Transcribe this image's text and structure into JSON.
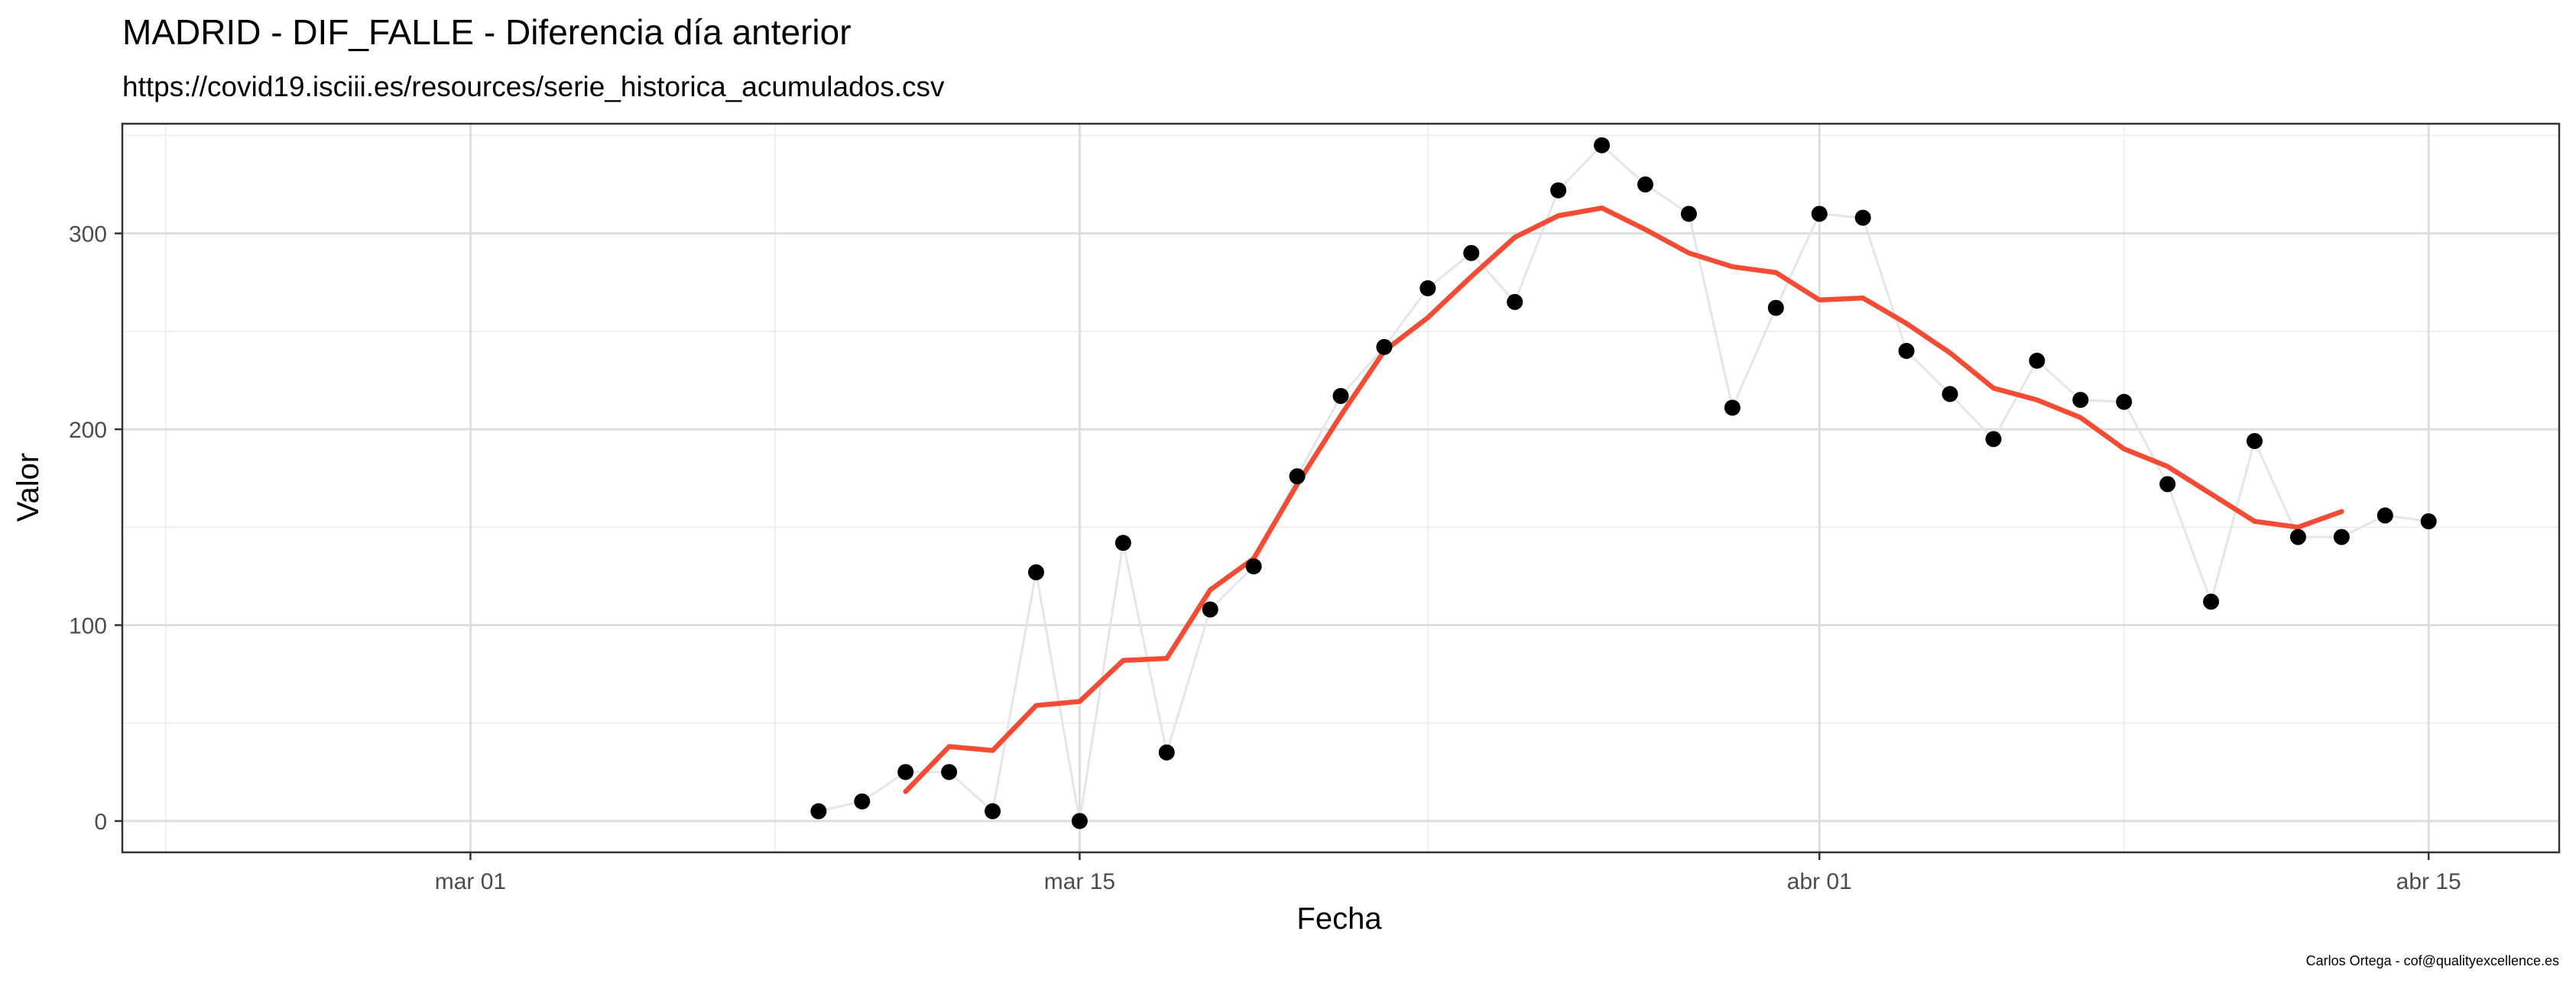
{
  "title": "MADRID - DIF_FALLE - Diferencia día anterior",
  "subtitle": "https://covid19.isciii.es/resources/serie_historica_acumulados.csv",
  "caption": "Carlos Ortega - cof@qualityexcellence.es",
  "colors": {
    "points": "#000000",
    "raw_line": "#e6e6e6",
    "smooth_line": "#f44b35",
    "grid_major": "#dedede",
    "grid_minor": "#efefef",
    "panel_border": "#333333"
  },
  "chart_data": {
    "type": "line",
    "title": "MADRID - DIF_FALLE - Diferencia día anterior",
    "subtitle": "https://covid19.isciii.es/resources/serie_historica_acumulados.csv",
    "xlabel": "Fecha",
    "ylabel": "Valor",
    "xlim": [
      "2020-02-22",
      "2020-04-18"
    ],
    "ylim": [
      -16,
      356
    ],
    "x_ticks": [
      {
        "date": "2020-03-01",
        "label": "mar 01"
      },
      {
        "date": "2020-03-15",
        "label": "mar 15"
      },
      {
        "date": "2020-04-01",
        "label": "abr 01"
      },
      {
        "date": "2020-04-15",
        "label": "abr 15"
      }
    ],
    "y_ticks": [
      0,
      100,
      200,
      300
    ],
    "grid": true,
    "legend": "none",
    "series": [
      {
        "values": [
          {
            "x": "2020-03-09",
            "y": 5
          },
          {
            "x": "2020-03-10",
            "y": 10
          },
          {
            "x": "2020-03-11",
            "y": 25
          },
          {
            "x": "2020-03-12",
            "y": 25
          },
          {
            "x": "2020-03-13",
            "y": 5
          },
          {
            "x": "2020-03-14",
            "y": 127
          },
          {
            "x": "2020-03-15",
            "y": 0
          },
          {
            "x": "2020-03-16",
            "y": 142
          },
          {
            "x": "2020-03-17",
            "y": 35
          },
          {
            "x": "2020-03-18",
            "y": 108
          },
          {
            "x": "2020-03-19",
            "y": 130
          },
          {
            "x": "2020-03-20",
            "y": 176
          },
          {
            "x": "2020-03-21",
            "y": 217
          },
          {
            "x": "2020-03-22",
            "y": 242
          },
          {
            "x": "2020-03-23",
            "y": 272
          },
          {
            "x": "2020-03-24",
            "y": 290
          },
          {
            "x": "2020-03-25",
            "y": 265
          },
          {
            "x": "2020-03-26",
            "y": 322
          },
          {
            "x": "2020-03-27",
            "y": 345
          },
          {
            "x": "2020-03-28",
            "y": 325
          },
          {
            "x": "2020-03-29",
            "y": 310
          },
          {
            "x": "2020-03-30",
            "y": 211
          },
          {
            "x": "2020-03-31",
            "y": 262
          },
          {
            "x": "2020-04-01",
            "y": 310
          },
          {
            "x": "2020-04-02",
            "y": 308
          },
          {
            "x": "2020-04-03",
            "y": 240
          },
          {
            "x": "2020-04-04",
            "y": 218
          },
          {
            "x": "2020-04-05",
            "y": 195
          },
          {
            "x": "2020-04-06",
            "y": 235
          },
          {
            "x": "2020-04-07",
            "y": 215
          },
          {
            "x": "2020-04-08",
            "y": 214
          },
          {
            "x": "2020-04-09",
            "y": 172
          },
          {
            "x": "2020-04-10",
            "y": 112
          },
          {
            "x": "2020-04-11",
            "y": 194
          },
          {
            "x": "2020-04-12",
            "y": 145
          },
          {
            "x": "2020-04-13",
            "y": 145
          },
          {
            "x": "2020-04-14",
            "y": 156
          },
          {
            "x": "2020-04-15",
            "y": 153
          }
        ]
      },
      {
        "values": [
          {
            "x": "2020-03-11",
            "y": 15
          },
          {
            "x": "2020-03-12",
            "y": 38
          },
          {
            "x": "2020-03-13",
            "y": 36
          },
          {
            "x": "2020-03-14",
            "y": 59
          },
          {
            "x": "2020-03-15",
            "y": 61
          },
          {
            "x": "2020-03-16",
            "y": 82
          },
          {
            "x": "2020-03-17",
            "y": 83
          },
          {
            "x": "2020-03-18",
            "y": 118
          },
          {
            "x": "2020-03-19",
            "y": 134
          },
          {
            "x": "2020-03-20",
            "y": 172
          },
          {
            "x": "2020-03-21",
            "y": 207
          },
          {
            "x": "2020-03-22",
            "y": 240
          },
          {
            "x": "2020-03-23",
            "y": 257
          },
          {
            "x": "2020-03-24",
            "y": 278
          },
          {
            "x": "2020-03-25",
            "y": 298
          },
          {
            "x": "2020-03-26",
            "y": 309
          },
          {
            "x": "2020-03-27",
            "y": 313
          },
          {
            "x": "2020-03-28",
            "y": 302
          },
          {
            "x": "2020-03-29",
            "y": 290
          },
          {
            "x": "2020-03-30",
            "y": 283
          },
          {
            "x": "2020-03-31",
            "y": 280
          },
          {
            "x": "2020-04-01",
            "y": 266
          },
          {
            "x": "2020-04-02",
            "y": 267
          },
          {
            "x": "2020-04-03",
            "y": 254
          },
          {
            "x": "2020-04-04",
            "y": 239
          },
          {
            "x": "2020-04-05",
            "y": 221
          },
          {
            "x": "2020-04-06",
            "y": 215
          },
          {
            "x": "2020-04-07",
            "y": 206
          },
          {
            "x": "2020-04-08",
            "y": 190
          },
          {
            "x": "2020-04-09",
            "y": 181
          },
          {
            "x": "2020-04-10",
            "y": 167
          },
          {
            "x": "2020-04-11",
            "y": 153
          },
          {
            "x": "2020-04-12",
            "y": 150
          },
          {
            "x": "2020-04-13",
            "y": 158
          }
        ]
      }
    ]
  }
}
